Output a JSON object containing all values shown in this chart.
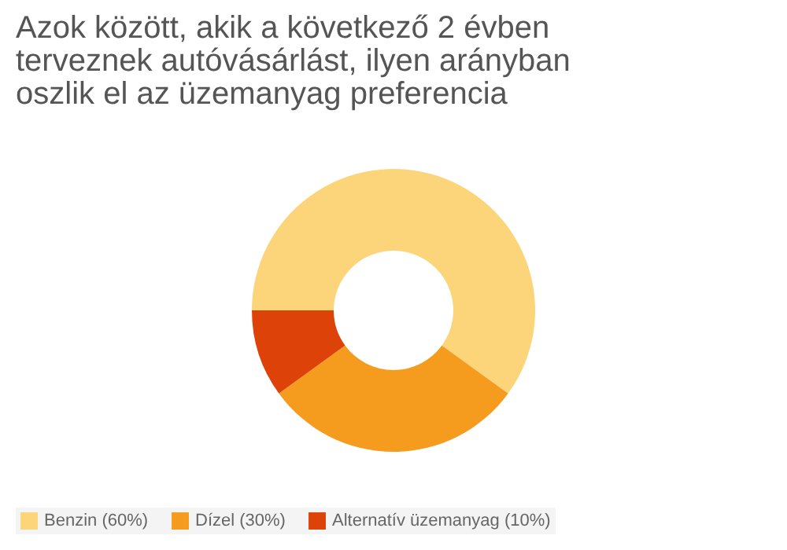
{
  "chart_data": {
    "type": "donut",
    "title": "Azok között, akik a következő 2 évben\nterveznek autóvásárlást, ilyen arányban\noszlik el az üzemanyag preferencia",
    "categories": [
      "Benzin (60%)",
      "Dízel (30%)",
      "Alternatív üzemanyag (10%)"
    ],
    "values": [
      60,
      30,
      10
    ],
    "colors": [
      "#fcd47a",
      "#f59b1e",
      "#dd4209"
    ],
    "legend": "bottom"
  }
}
